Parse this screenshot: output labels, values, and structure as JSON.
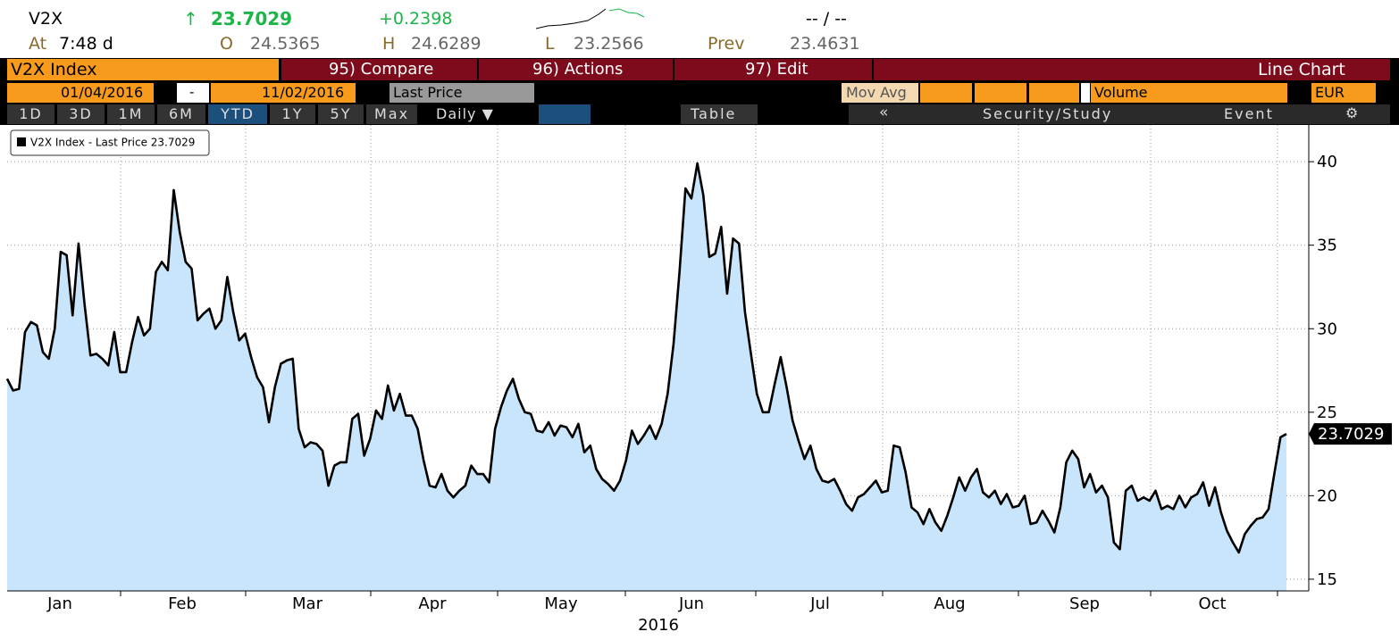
{
  "header": {
    "ticker": "V2X",
    "arrow": "↑",
    "last": "23.7029",
    "change": "+0.2398",
    "dashes": "-- / --",
    "at_label": "At",
    "time": "7:48 d",
    "open_label": "O",
    "open": "24.5365",
    "high_label": "H",
    "high": "24.6289",
    "low_label": "L",
    "low": "23.2566",
    "prev_label": "Prev",
    "prev": "23.4631"
  },
  "toolbar1": {
    "title": "V2X Index",
    "compare": "95) Compare",
    "actions": "96) Actions",
    "edit": "97) Edit",
    "chart_type": "Line Chart"
  },
  "toolbar2": {
    "start_date": "01/04/2016",
    "dash": "-",
    "end_date": "11/02/2016",
    "field": "Last Price",
    "mov_avg": "Mov Avg",
    "volume": "Volume",
    "currency": "EUR"
  },
  "toolbar3": {
    "ranges": [
      "1D",
      "3D",
      "1M",
      "6M",
      "YTD",
      "1Y",
      "5Y",
      "Max"
    ],
    "period": "Daily ▼",
    "table": "Table",
    "back": "«",
    "study": "Security/Study",
    "event": "Event"
  },
  "chart_data": {
    "type": "line",
    "series": [
      {
        "name": "V2X Index - Last Price 23.7029",
        "color": "#000000",
        "fill": "#c8e5fb",
        "values": [
          27,
          26.3,
          26.4,
          29.8,
          30.4,
          30.2,
          28.6,
          28.2,
          30,
          34.6,
          34.4,
          30.8,
          35.1,
          31.5,
          28.4,
          28.5,
          28.2,
          27.8,
          29.8,
          27.4,
          27.4,
          29.2,
          30.7,
          29.6,
          30,
          33.4,
          34,
          33.5,
          38.3,
          35.8,
          34,
          33.6,
          30.5,
          30.9,
          31.2,
          30,
          30.5,
          33.1,
          31,
          29.3,
          29.7,
          28.3,
          27.1,
          26.5,
          24.4,
          26.5,
          27.9,
          28.1,
          28.2,
          24,
          22.9,
          23.2,
          23.1,
          22.7,
          20.6,
          21.8,
          22,
          22,
          24.6,
          24.9,
          22.4,
          23.4,
          25.1,
          24.6,
          26.6,
          25.1,
          26.1,
          24.8,
          24.8,
          24,
          22.1,
          20.6,
          20.5,
          21.3,
          20.3,
          19.9,
          20.3,
          20.6,
          21.8,
          21.3,
          21.3,
          20.8,
          24,
          25.3,
          26.3,
          27,
          25.8,
          25,
          24.9,
          23.9,
          23.8,
          24.4,
          23.6,
          24.2,
          24.1,
          23.5,
          24.3,
          22.6,
          23,
          21.6,
          21,
          20.7,
          20.3,
          20.9,
          22.1,
          23.9,
          23.1,
          23.6,
          24.2,
          23.4,
          24.3,
          26.1,
          29.1,
          33.4,
          38.4,
          37.8,
          39.9,
          38,
          34.3,
          34.5,
          36.1,
          32.1,
          35.4,
          35.1,
          31,
          28.5,
          26.1,
          25,
          25,
          26.7,
          28.3,
          26.5,
          24.5,
          23.3,
          22.2,
          23,
          21.6,
          20.9,
          20.8,
          21,
          20.3,
          19.5,
          19.1,
          19.9,
          20.1,
          20.5,
          20.9,
          20.2,
          20.3,
          23,
          22.9,
          21.4,
          19.3,
          19,
          18.3,
          19.2,
          18.4,
          17.9,
          18.8,
          19.9,
          21.1,
          20.3,
          21.1,
          21.6,
          20.2,
          19.9,
          20.3,
          19.5,
          20.1,
          19.3,
          19.4,
          20,
          18.3,
          18.4,
          19.1,
          18.5,
          17.8,
          19.3,
          22,
          22.7,
          22.2,
          20.5,
          21.3,
          20.2,
          20.6,
          19.9,
          17.2,
          16.8,
          20.3,
          20.6,
          19.7,
          19.9,
          19.7,
          20.3,
          19.2,
          19.4,
          19.2,
          20,
          19.3,
          19.9,
          20.1,
          20.8,
          19.4,
          20.5,
          19,
          17.9,
          17.2,
          16.6,
          17.7,
          18.2,
          18.6,
          18.7,
          19.2,
          21.4,
          23.5,
          23.7029
        ],
        "value_labels": {
          "last": "23.7029"
        }
      }
    ],
    "month_labels": [
      "Jan",
      "Feb",
      "Mar",
      "Apr",
      "May",
      "Jun",
      "Jul",
      "Aug",
      "Sep",
      "Oct"
    ],
    "year_label": "2016",
    "ylim": [
      14.3,
      42.2
    ],
    "yticks": [
      15,
      20,
      25,
      30,
      35,
      40
    ],
    "grid": true
  }
}
